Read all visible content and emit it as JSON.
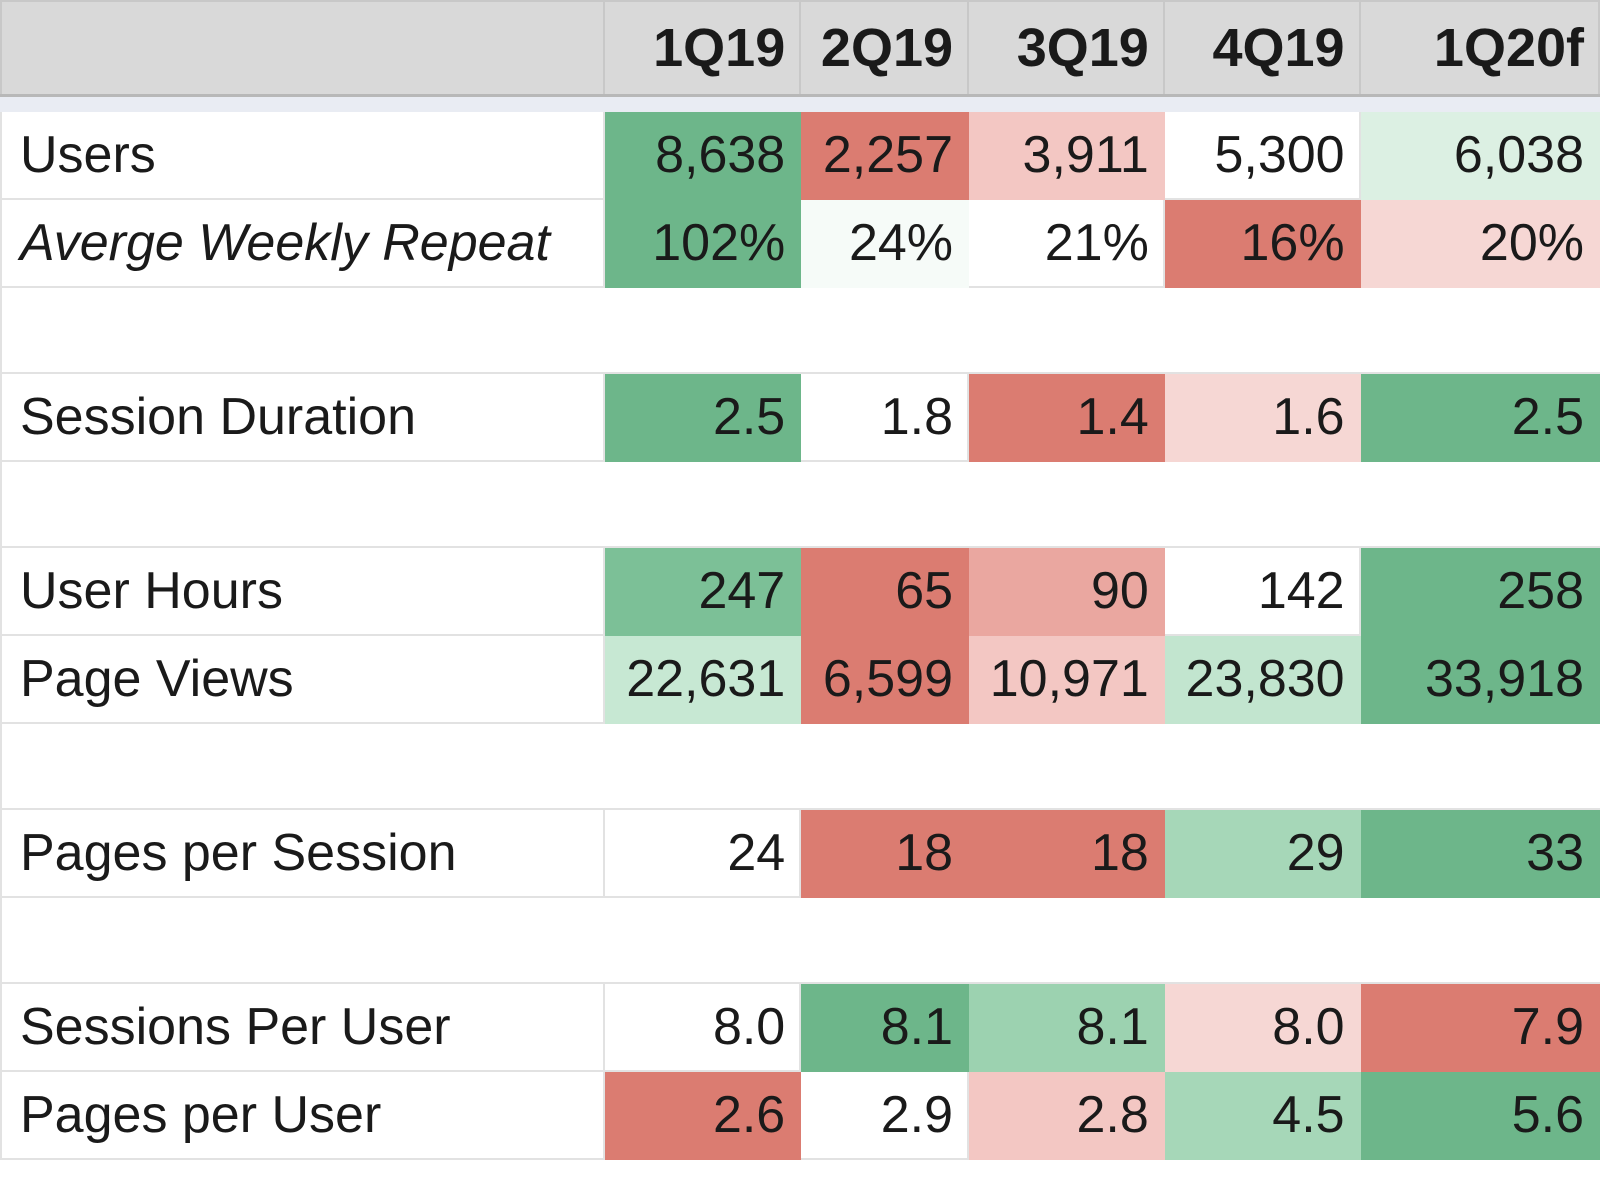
{
  "header": {
    "corner": "",
    "columns": [
      "1Q19",
      "2Q19",
      "3Q19",
      "4Q19",
      "1Q20f"
    ]
  },
  "rows": [
    {
      "label": "Users",
      "italic": false,
      "values": [
        "8,638",
        "2,257",
        "3,911",
        "5,300",
        "6,038"
      ],
      "colors": [
        "#6db68a",
        "#db7c71",
        "#f3c7c3",
        "#ffffff",
        "#dcf0e3"
      ]
    },
    {
      "label": "Averge Weekly Repeat",
      "italic": true,
      "values": [
        "102%",
        "24%",
        "21%",
        "16%",
        "20%"
      ],
      "colors": [
        "#6db68a",
        "#f6fbf8",
        "#ffffff",
        "#db7c71",
        "#f6d7d4"
      ]
    },
    {
      "spacer": true
    },
    {
      "label": "Session Duration",
      "italic": false,
      "values": [
        "2.5",
        "1.8",
        "1.4",
        "1.6",
        "2.5"
      ],
      "colors": [
        "#6db68a",
        "#ffffff",
        "#db7c71",
        "#f6d7d4",
        "#6db68a"
      ]
    },
    {
      "spacer": true
    },
    {
      "label": "User Hours",
      "italic": false,
      "values": [
        "247",
        "65",
        "90",
        "142",
        "258"
      ],
      "colors": [
        "#7cc097",
        "#db7c71",
        "#eaa7a0",
        "#ffffff",
        "#6db68a"
      ]
    },
    {
      "label": "Page Views",
      "italic": false,
      "values": [
        "22,631",
        "6,599",
        "10,971",
        "23,830",
        "33,918"
      ],
      "colors": [
        "#c7e8d3",
        "#db7c71",
        "#f3c7c3",
        "#c2e5cf",
        "#6db68a"
      ]
    },
    {
      "spacer": true
    },
    {
      "label": "Pages per Session",
      "italic": false,
      "values": [
        "24",
        "18",
        "18",
        "29",
        "33"
      ],
      "colors": [
        "#ffffff",
        "#db7c71",
        "#db7c71",
        "#a6d7b8",
        "#6db68a"
      ]
    },
    {
      "spacer": true
    },
    {
      "label": "Sessions Per User",
      "italic": false,
      "values": [
        "8.0",
        "8.1",
        "8.1",
        "8.0",
        "7.9"
      ],
      "colors": [
        "#ffffff",
        "#6db68a",
        "#9cd2b0",
        "#f6d7d4",
        "#db7c71"
      ]
    },
    {
      "label": "Pages per User",
      "italic": false,
      "values": [
        "2.6",
        "2.9",
        "2.8",
        "4.5",
        "5.6"
      ],
      "colors": [
        "#db7c71",
        "#ffffff",
        "#f3c7c3",
        "#a6d7b8",
        "#6db68a"
      ]
    }
  ]
}
